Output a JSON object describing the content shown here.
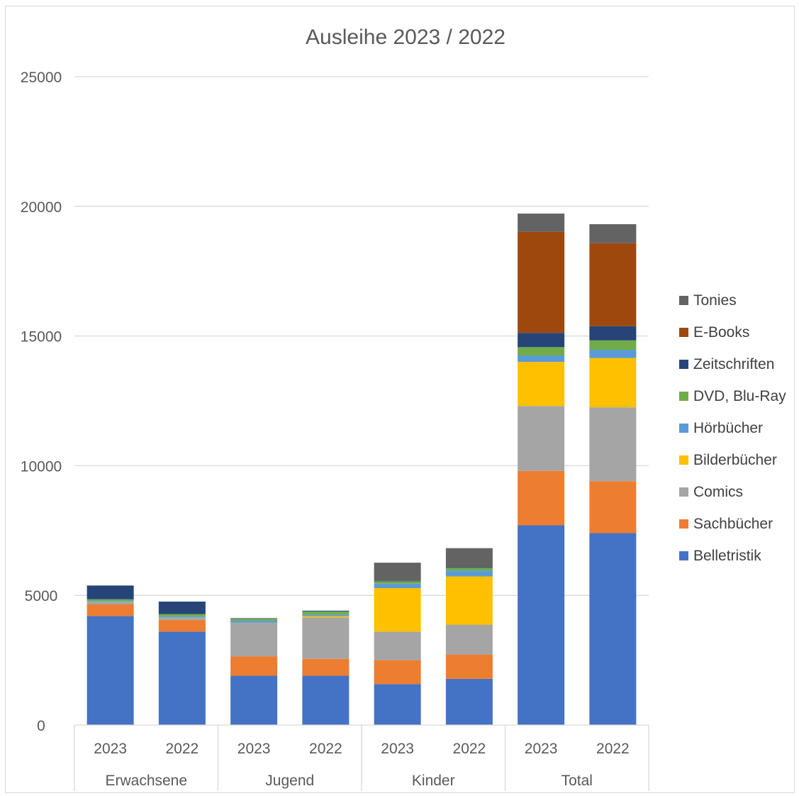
{
  "chart_data": {
    "type": "bar",
    "stacked": true,
    "title": "Ausleihe 2023 / 2022",
    "xlabel": "",
    "ylabel": "",
    "ylim": [
      0,
      25000
    ],
    "yticks": [
      "0",
      "5000",
      "10000",
      "15000",
      "20000",
      "25000"
    ],
    "grid": true,
    "legend_position": "right",
    "categories": [
      "2023",
      "2022",
      "2023",
      "2022",
      "2023",
      "2022",
      "2023",
      "2022"
    ],
    "groups": [
      {
        "label": "Erwachsene",
        "count": 2
      },
      {
        "label": "Jugend",
        "count": 2
      },
      {
        "label": "Kinder",
        "count": 2
      },
      {
        "label": "Total",
        "count": 2
      }
    ],
    "series": [
      {
        "name": "Belletristik",
        "color": "#4472c4",
        "values": [
          4200,
          3600,
          1900,
          1900,
          1580,
          1780,
          7700,
          7400
        ]
      },
      {
        "name": "Sachbücher",
        "color": "#ed7d31",
        "values": [
          450,
          450,
          750,
          650,
          920,
          940,
          2100,
          2000
        ]
      },
      {
        "name": "Comics",
        "color": "#a5a5a5",
        "values": [
          100,
          100,
          1300,
          1600,
          1100,
          1150,
          2500,
          2850
        ]
      },
      {
        "name": "Bilderbücher",
        "color": "#ffc000",
        "values": [
          0,
          0,
          0,
          50,
          1680,
          1860,
          1700,
          1900
        ]
      },
      {
        "name": "Hörbücher",
        "color": "#5b9bd5",
        "values": [
          30,
          40,
          70,
          60,
          170,
          230,
          250,
          320
        ]
      },
      {
        "name": "DVD, Blu-Ray",
        "color": "#70ad47",
        "values": [
          70,
          90,
          80,
          120,
          90,
          100,
          320,
          360
        ]
      },
      {
        "name": "Zeitschriften",
        "color": "#264478",
        "values": [
          530,
          480,
          20,
          30,
          20,
          30,
          550,
          550
        ]
      },
      {
        "name": "E-Books",
        "color": "#9e480e",
        "values": [
          0,
          0,
          0,
          0,
          0,
          0,
          3900,
          3200
        ]
      },
      {
        "name": "Tonies",
        "color": "#636363",
        "values": [
          0,
          0,
          0,
          0,
          700,
          730,
          700,
          730
        ]
      }
    ]
  }
}
